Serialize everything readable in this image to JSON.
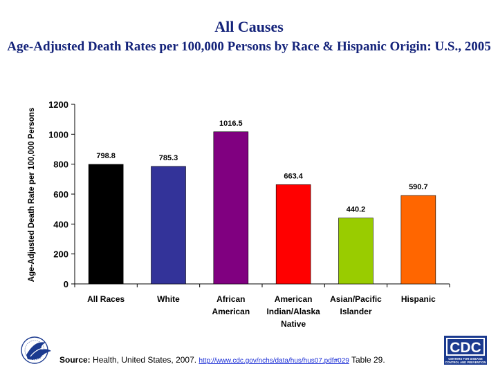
{
  "title": {
    "main": "All Causes",
    "sub": "Age-Adjusted Death Rates per 100,000 Persons by Race & Hispanic Origin: U.S., 2005"
  },
  "chart_data": {
    "type": "bar",
    "title": "All Causes",
    "subtitle": "Age-Adjusted Death Rates per 100,000 Persons by Race & Hispanic Origin: U.S., 2005",
    "categories": [
      "All Races",
      "White",
      "African American",
      "American Indian/Alaska Native",
      "Asian/Pacific Islander",
      "Hispanic"
    ],
    "category_lines": [
      [
        "All Races"
      ],
      [
        "White"
      ],
      [
        "African",
        "American"
      ],
      [
        "American",
        "Indian/Alaska",
        "Native"
      ],
      [
        "Asian/Pacific",
        "Islander"
      ],
      [
        "Hispanic"
      ]
    ],
    "values": [
      798.8,
      785.3,
      1016.5,
      663.4,
      440.2,
      590.7
    ],
    "value_labels": [
      "798.8",
      "785.3",
      "1016.5",
      "663.4",
      "440.2",
      "590.7"
    ],
    "colors": [
      "#000000",
      "#333399",
      "#800080",
      "#ff0000",
      "#99cc00",
      "#ff6600"
    ],
    "xlabel": "",
    "ylabel": "Age-Adjusted Death Rate per 100,000 Persons",
    "ylim": [
      0,
      1200
    ],
    "yticks": [
      0,
      200,
      400,
      600,
      800,
      1000,
      1200
    ],
    "grid": false,
    "legend": "none"
  },
  "footer": {
    "source_label": "Source:",
    "source_text": " Health, United States, 2007.",
    "source_link": "http://www.cdc.gov/nchs/data/hus/hus07.pdf#029",
    "table_ref": "Table 29."
  },
  "logos": {
    "hhs": "hhs-eagle-seal",
    "cdc_text": "CDC",
    "cdc_tagline": [
      "CENTERS FOR DISEASE",
      "CONTROL AND PREVENTION"
    ]
  },
  "colors": {
    "title": "#14237a",
    "link": "#1c2fd6",
    "cdc_blue": "#1b3a8f"
  }
}
